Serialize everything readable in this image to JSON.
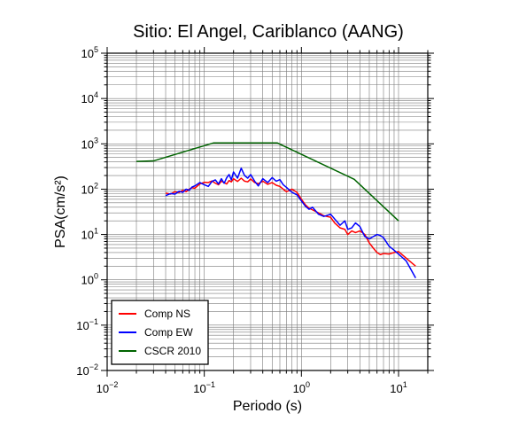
{
  "chart_data": {
    "type": "line",
    "title": "Sitio: El Angel, Cariblanco (AANG)",
    "xlabel": "Periodo (s)",
    "ylabel": "PSA(cm/s²)",
    "xscale": "log",
    "yscale": "log",
    "xlim": [
      0.01,
      20
    ],
    "ylim": [
      0.01,
      100000
    ],
    "grid": true,
    "legend_position": "bottom-left",
    "x_tick_labels": [
      {
        "value": 0.01,
        "base": "10",
        "exp": "−2"
      },
      {
        "value": 0.1,
        "base": "10",
        "exp": "−1"
      },
      {
        "value": 1,
        "base": "10",
        "exp": "0"
      },
      {
        "value": 10,
        "base": "10",
        "exp": "1"
      }
    ],
    "y_tick_labels": [
      {
        "value": 0.01,
        "base": "10",
        "exp": "−2"
      },
      {
        "value": 0.1,
        "base": "10",
        "exp": "−1"
      },
      {
        "value": 1,
        "base": "10",
        "exp": "0"
      },
      {
        "value": 10,
        "base": "10",
        "exp": "1"
      },
      {
        "value": 100,
        "base": "10",
        "exp": "2"
      },
      {
        "value": 1000,
        "base": "10",
        "exp": "3"
      },
      {
        "value": 10000,
        "base": "10",
        "exp": "4"
      },
      {
        "value": 100000,
        "base": "10",
        "exp": "5"
      }
    ],
    "series": [
      {
        "name": "Comp NS",
        "color": "#ff0000",
        "x": [
          0.04,
          0.045,
          0.05,
          0.055,
          0.06,
          0.065,
          0.07,
          0.075,
          0.08,
          0.09,
          0.1,
          0.11,
          0.12,
          0.13,
          0.14,
          0.15,
          0.16,
          0.17,
          0.18,
          0.19,
          0.2,
          0.22,
          0.24,
          0.26,
          0.28,
          0.3,
          0.33,
          0.36,
          0.4,
          0.45,
          0.5,
          0.55,
          0.6,
          0.65,
          0.7,
          0.8,
          0.9,
          1.0,
          1.1,
          1.2,
          1.3,
          1.5,
          1.7,
          2.0,
          2.2,
          2.5,
          2.8,
          3.0,
          3.3,
          3.6,
          4.0,
          4.5,
          5.0,
          5.5,
          6.0,
          6.5,
          7.0,
          8.0,
          9.0,
          10.0,
          12.0,
          15.0
        ],
        "y": [
          82,
          78,
          88,
          84,
          95,
          88,
          100,
          108,
          105,
          130,
          142,
          140,
          152,
          135,
          125,
          150,
          140,
          130,
          155,
          145,
          170,
          148,
          175,
          150,
          145,
          168,
          140,
          132,
          150,
          128,
          140,
          122,
          115,
          100,
          88,
          100,
          85,
          60,
          45,
          38,
          35,
          30,
          26,
          24,
          18,
          14,
          13,
          10,
          12,
          11,
          12,
          10,
          6.5,
          5.0,
          4.0,
          3.6,
          3.8,
          3.7,
          4.0,
          4.2,
          3.0,
          2.0
        ]
      },
      {
        "name": "Comp EW",
        "color": "#0000ff",
        "x": [
          0.04,
          0.045,
          0.05,
          0.055,
          0.06,
          0.065,
          0.07,
          0.075,
          0.08,
          0.09,
          0.1,
          0.11,
          0.12,
          0.13,
          0.14,
          0.15,
          0.16,
          0.17,
          0.18,
          0.19,
          0.2,
          0.22,
          0.24,
          0.26,
          0.28,
          0.3,
          0.33,
          0.36,
          0.4,
          0.45,
          0.5,
          0.55,
          0.6,
          0.65,
          0.7,
          0.8,
          0.9,
          1.0,
          1.1,
          1.2,
          1.3,
          1.5,
          1.7,
          2.0,
          2.2,
          2.5,
          2.8,
          3.0,
          3.3,
          3.6,
          4.0,
          4.5,
          5.0,
          5.5,
          6.0,
          6.5,
          7.0,
          8.0,
          9.0,
          10.0,
          12.0,
          15.0
        ],
        "y": [
          72,
          80,
          78,
          90,
          85,
          100,
          95,
          112,
          118,
          140,
          125,
          115,
          148,
          160,
          130,
          170,
          135,
          178,
          210,
          160,
          240,
          175,
          290,
          200,
          175,
          210,
          150,
          118,
          170,
          140,
          180,
          150,
          162,
          125,
          110,
          85,
          75,
          55,
          42,
          36,
          40,
          28,
          25,
          28,
          22,
          16,
          20,
          13,
          14,
          18,
          15,
          9,
          8,
          9,
          10,
          9.5,
          8.5,
          5.5,
          4.5,
          3.7,
          2.6,
          1.1
        ]
      },
      {
        "name": "CSCR 2010",
        "color": "#006400",
        "x": [
          0.02,
          0.03,
          0.125,
          0.5625,
          3.5,
          10.0
        ],
        "y": [
          410,
          420,
          1050,
          1050,
          165,
          20
        ]
      }
    ]
  }
}
